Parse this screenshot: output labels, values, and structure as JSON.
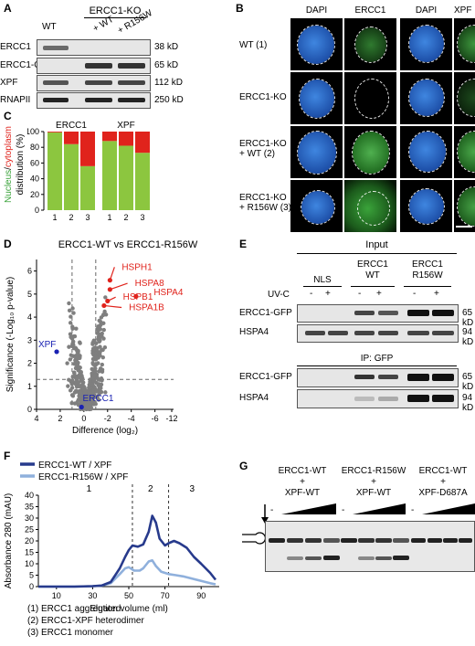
{
  "panels": {
    "A": {
      "letter": "A",
      "group_header": "ERCC1-KO",
      "lanes": [
        "WT",
        "+ WT",
        "+ R156W"
      ],
      "rows": [
        {
          "name": "ERCC1",
          "size": "38 kD"
        },
        {
          "name": "ERCC1-GFP",
          "size": "65 kD"
        },
        {
          "name": "XPF",
          "size": "112 kD"
        },
        {
          "name": "RNAPII",
          "size": "250 kD"
        }
      ]
    },
    "B": {
      "letter": "B",
      "channels": [
        "DAPI",
        "ERCC1",
        "DAPI",
        "XPF"
      ],
      "rows": [
        "WT (1)",
        "ERCC1-KO",
        "ERCC1-KO\n+ WT (2)",
        "ERCC1-KO\n+ R156W (3)"
      ]
    },
    "C": {
      "letter": "C",
      "ylabel_nucleus": "Nucleus",
      "ylabel_slash": "/",
      "ylabel_cytoplasm": "cytoplasm",
      "ylabel_rest": "distribution (%)",
      "yticks": [
        "0",
        "20",
        "40",
        "60",
        "80",
        "100"
      ]
    },
    "D": {
      "letter": "D",
      "title": "ERCC1-WT vs ERCC1-R156W",
      "xlabel": "Difference (log₂)",
      "ylabel": "Significance (-Log₁₀ p-value)",
      "xticks": [
        "4",
        "2",
        "0",
        "-2",
        "-4",
        "-6",
        "-12"
      ],
      "yticks": [
        "0",
        "1",
        "2",
        "3",
        "4",
        "5",
        "6"
      ],
      "labels": {
        "HSPH1": "HSPH1",
        "HSPA8": "HSPA8",
        "HSPA4": "HSPA4",
        "HSPB1": "HSPB1",
        "HSPA1B": "HSPA1B",
        "XPF": "XPF",
        "ERCC1": "ERCC1"
      }
    },
    "E": {
      "letter": "E",
      "input_header": "Input",
      "ip_header": "IP: GFP",
      "groups": [
        "NLS",
        "ERCC1\nWT",
        "ERCC1\nR156W"
      ],
      "uvc_label": "UV-C",
      "uvc_marks": [
        "-",
        "+",
        "-",
        "+",
        "-",
        "+"
      ],
      "rows": [
        {
          "name": "ERCC1-GFP",
          "size": "65 kD"
        },
        {
          "name": "HSPA4",
          "size": "94 kD"
        }
      ]
    },
    "F": {
      "letter": "F",
      "legend": [
        "ERCC1-WT / XPF",
        "ERCC1-R156W / XPF"
      ],
      "xlabel": "Elution volume (ml)",
      "ylabel": "Absorbance 280 (mAU)",
      "xticks": [
        "10",
        "30",
        "50",
        "70",
        "90"
      ],
      "yticks": [
        "0",
        "5",
        "10",
        "15",
        "20",
        "25",
        "30",
        "35",
        "40"
      ],
      "regions": [
        "1",
        "2",
        "3"
      ],
      "notes": [
        "(1) ERCC1 aggregated",
        "(2) ERCC1-XPF heterodimer",
        "(3) ERCC1 monomer"
      ]
    },
    "G": {
      "letter": "G",
      "groups": [
        {
          "line1": "ERCC1-WT",
          "line2": "+",
          "line3": "XPF-WT"
        },
        {
          "line1": "ERCC1-R156W",
          "line2": "+",
          "line3": "XPF-WT"
        },
        {
          "line1": "ERCC1-WT",
          "line2": "+",
          "line3": "XPF-D687A"
        }
      ],
      "minus": "-"
    }
  },
  "chart_data": [
    {
      "type": "bar",
      "panel": "C",
      "groups": [
        "ERCC1",
        "XPF"
      ],
      "categories": [
        "1",
        "2",
        "3"
      ],
      "ylim": [
        0,
        100
      ],
      "series": [
        {
          "name": "Nucleus",
          "color": "#8cc63f",
          "values": {
            "ERCC1": [
              99,
              84,
              56
            ],
            "XPF": [
              88,
              82,
              73
            ]
          }
        },
        {
          "name": "cytoplasm",
          "color": "#e0231c",
          "values": {
            "ERCC1": [
              1,
              16,
              44
            ],
            "XPF": [
              12,
              18,
              27
            ]
          }
        }
      ]
    },
    {
      "type": "scatter",
      "panel": "D",
      "xlim": [
        4,
        -6.8
      ],
      "ylim": [
        0,
        6.5
      ],
      "threshold_y": 1.3,
      "threshold_x": [
        1,
        -1
      ],
      "highlighted": [
        {
          "name": "HSPH1",
          "x": -2.2,
          "y": 5.6,
          "color": "#e0231c"
        },
        {
          "name": "HSPA8",
          "x": -2.2,
          "y": 5.2,
          "color": "#e0231c"
        },
        {
          "name": "HSPA4",
          "x": -4.4,
          "y": 4.9,
          "color": "#e0231c"
        },
        {
          "name": "HSPB1",
          "x": -2.0,
          "y": 4.7,
          "color": "#e0231c"
        },
        {
          "name": "HSPA1B",
          "x": -1.7,
          "y": 4.5,
          "color": "#e0231c"
        },
        {
          "name": "XPF",
          "x": 2.3,
          "y": 2.5,
          "color": "#1a22b3"
        },
        {
          "name": "ERCC1",
          "x": 0.2,
          "y": 0.1,
          "color": "#1a22b3"
        }
      ]
    },
    {
      "type": "line",
      "panel": "F",
      "xlim": [
        0,
        100
      ],
      "ylim": [
        0,
        40
      ],
      "vlines": [
        52,
        72
      ],
      "series": [
        {
          "name": "ERCC1-WT / XPF",
          "color": "#273a8c",
          "x": [
            0,
            10,
            20,
            30,
            35,
            40,
            45,
            48,
            50,
            52,
            55,
            58,
            61,
            63,
            65,
            67,
            70,
            72,
            75,
            78,
            82,
            86,
            90,
            95,
            98
          ],
          "y": [
            0,
            0,
            0,
            0.2,
            0.5,
            2,
            8,
            13,
            16,
            18,
            17.5,
            18.5,
            24,
            31,
            28,
            21,
            18,
            19,
            20,
            19,
            17,
            13,
            10,
            6,
            3
          ]
        },
        {
          "name": "ERCC1-R156W / XPF",
          "color": "#8fb0dc",
          "x": [
            0,
            10,
            20,
            30,
            35,
            40,
            45,
            48,
            50,
            53,
            56,
            58,
            61,
            63,
            65,
            68,
            72,
            76,
            80,
            85,
            90,
            95,
            98
          ],
          "y": [
            0,
            0,
            0,
            0.2,
            0.4,
            1.5,
            5.5,
            8,
            8.5,
            7,
            7,
            8,
            11,
            11.5,
            9,
            6.5,
            5.5,
            5,
            4.5,
            3.5,
            2.5,
            1.5,
            1
          ]
        }
      ]
    }
  ]
}
